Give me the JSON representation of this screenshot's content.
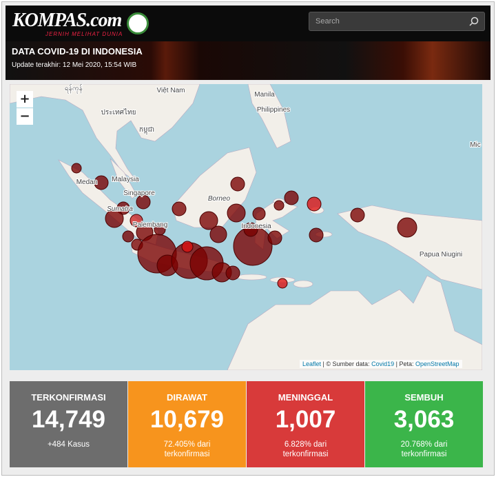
{
  "header": {
    "logo": "KOMPAS.com",
    "tagline": "JERNIH MELIHAT DUNIA",
    "search_placeholder": "Search",
    "title": "DATA COVID-19 DI INDONESIA",
    "update": "Update terakhir: 12 Mei 2020, 15:54 WIB"
  },
  "map": {
    "zoom_in": "+",
    "zoom_out": "−",
    "labels": [
      "ရန်ကုန်",
      "Việt Nam",
      "Manila",
      "Philippines",
      "ประเทศไทย",
      "កម្ពុជា",
      "Malaysia",
      "Medan",
      "Singapore",
      "Sumatra",
      "Palembang",
      "Borneo",
      "Indonesia",
      "Papua Niugini",
      "Mic"
    ],
    "attribution": {
      "leaflet": "Leaflet",
      "source_prefix": "| © Sumber data:",
      "source": "Covid19",
      "map_prefix": "| Peta:",
      "map": "OpenStreetMap"
    }
  },
  "stats": [
    {
      "title": "TERKONFIRMASI",
      "value": "14,749",
      "note": "+484 Kasus"
    },
    {
      "title": "DIRAWAT",
      "value": "10,679",
      "note": "72.405% dari terkonfirmasi"
    },
    {
      "title": "MENINGGAL",
      "value": "1,007",
      "note": "6.828% dari terkonfirmasi"
    },
    {
      "title": "SEMBUH",
      "value": "3,063",
      "note": "20.768% dari terkonfirmasi"
    }
  ]
}
